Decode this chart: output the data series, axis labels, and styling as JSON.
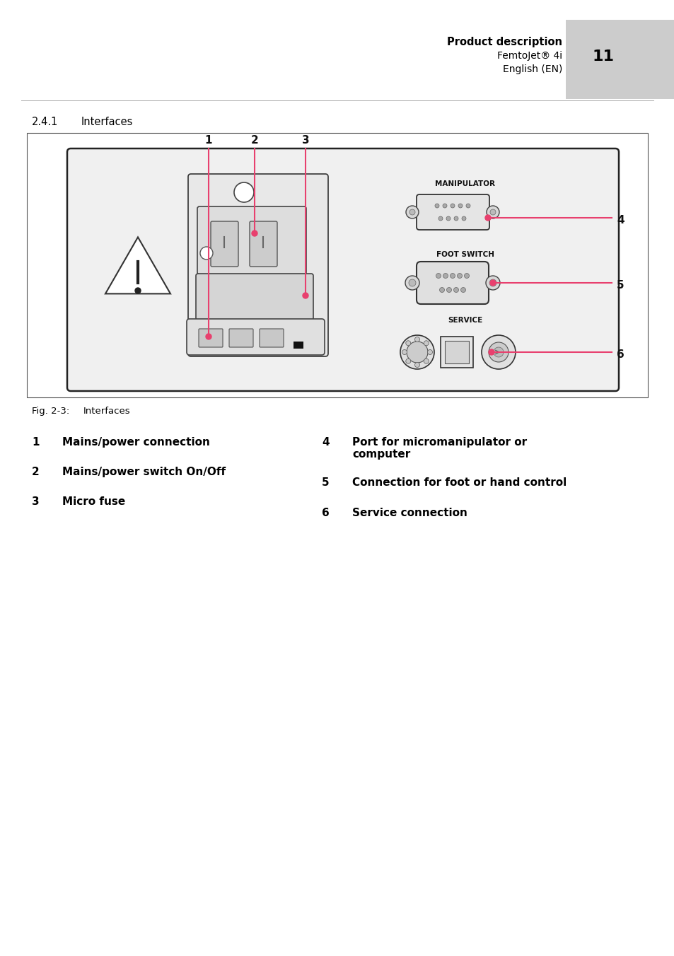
{
  "page_title": "Product description",
  "page_subtitle": "FemtoJet® 4i",
  "page_lang": "English (EN)",
  "page_number": "11",
  "section": "2.4.1",
  "section_title": "Interfaces",
  "fig_label": "Fig. 2-3:",
  "fig_caption": "Interfaces",
  "items_left": [
    {
      "num": "1",
      "text": "Mains/power connection"
    },
    {
      "num": "2",
      "text": "Mains/power switch On/Off"
    },
    {
      "num": "3",
      "text": "Micro fuse"
    }
  ],
  "items_right": [
    {
      "num": "4",
      "text": "Port for micromanipulator or\ncomputer"
    },
    {
      "num": "5",
      "text": "Connection for foot or hand control"
    },
    {
      "num": "6",
      "text": "Service connection"
    }
  ],
  "accent_color": "#e8406e",
  "bg_color": "#ffffff",
  "header_bg": "#cccccc",
  "text_color": "#000000"
}
